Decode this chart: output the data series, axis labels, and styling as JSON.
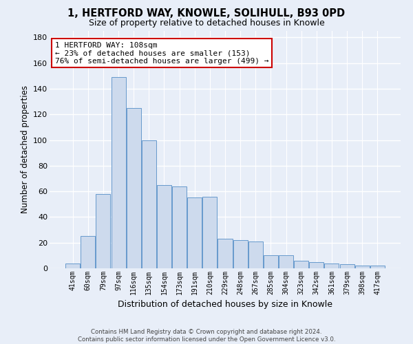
{
  "title_line1": "1, HERTFORD WAY, KNOWLE, SOLIHULL, B93 0PD",
  "title_line2": "Size of property relative to detached houses in Knowle",
  "xlabel": "Distribution of detached houses by size in Knowle",
  "ylabel": "Number of detached properties",
  "bar_heights": [
    4,
    25,
    58,
    149,
    125,
    100,
    65,
    64,
    55,
    56,
    23,
    22,
    21,
    10,
    10,
    6,
    5,
    4,
    3,
    2,
    2
  ],
  "bar_labels": [
    "41sqm",
    "60sqm",
    "79sqm",
    "97sqm",
    "116sqm",
    "135sqm",
    "154sqm",
    "173sqm",
    "191sqm",
    "210sqm",
    "229sqm",
    "248sqm",
    "267sqm",
    "285sqm",
    "304sqm",
    "323sqm",
    "342sqm",
    "361sqm",
    "379sqm",
    "398sqm",
    "417sqm"
  ],
  "bar_color": "#cddaed",
  "bar_edge_color": "#6699cc",
  "background_color": "#e8eef8",
  "grid_color": "#ffffff",
  "annotation_text": "1 HERTFORD WAY: 108sqm\n← 23% of detached houses are smaller (153)\n76% of semi-detached houses are larger (499) →",
  "annotation_box_color": "#ffffff",
  "annotation_box_edge": "#cc0000",
  "ylim": [
    0,
    185
  ],
  "yticks": [
    0,
    20,
    40,
    60,
    80,
    100,
    120,
    140,
    160,
    180
  ],
  "footer_line1": "Contains HM Land Registry data © Crown copyright and database right 2024.",
  "footer_line2": "Contains public sector information licensed under the Open Government Licence v3.0."
}
